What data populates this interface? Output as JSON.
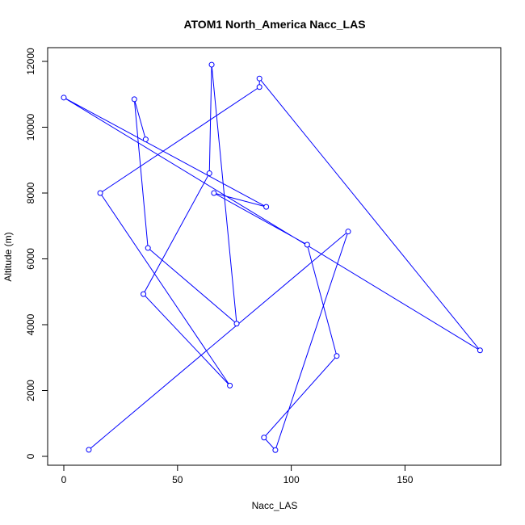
{
  "chart_data": {
    "type": "line",
    "title": "ATOM1 North_America Nacc_LAS",
    "xlabel": "Nacc_LAS",
    "ylabel": "Altitude (m)",
    "xlim": [
      0,
      185
    ],
    "ylim": [
      0,
      12000
    ],
    "x_ticks": [
      0,
      50,
      100,
      150
    ],
    "y_ticks": [
      0,
      2000,
      4000,
      6000,
      8000,
      10000,
      12000
    ],
    "grid": false,
    "line_color": "#0000ff",
    "marker": "open-circle",
    "series": [
      {
        "points": [
          {
            "x": 11,
            "y": 200
          },
          {
            "x": 125,
            "y": 6830
          },
          {
            "x": 93,
            "y": 190
          },
          {
            "x": 88,
            "y": 570
          },
          {
            "x": 120,
            "y": 3050
          },
          {
            "x": 107,
            "y": 6430
          },
          {
            "x": 66,
            "y": 8000
          },
          {
            "x": 89,
            "y": 7580
          },
          {
            "x": 0,
            "y": 10900
          },
          {
            "x": 183,
            "y": 3220
          },
          {
            "x": 86,
            "y": 11480
          },
          {
            "x": 86,
            "y": 11220
          },
          {
            "x": 16,
            "y": 8000
          },
          {
            "x": 73,
            "y": 2150
          },
          {
            "x": 35,
            "y": 4930
          },
          {
            "x": 64,
            "y": 8600
          },
          {
            "x": 65,
            "y": 11900
          },
          {
            "x": 76,
            "y": 4030
          },
          {
            "x": 37,
            "y": 6330
          },
          {
            "x": 31,
            "y": 10850
          },
          {
            "x": 36,
            "y": 9630
          }
        ]
      }
    ]
  }
}
